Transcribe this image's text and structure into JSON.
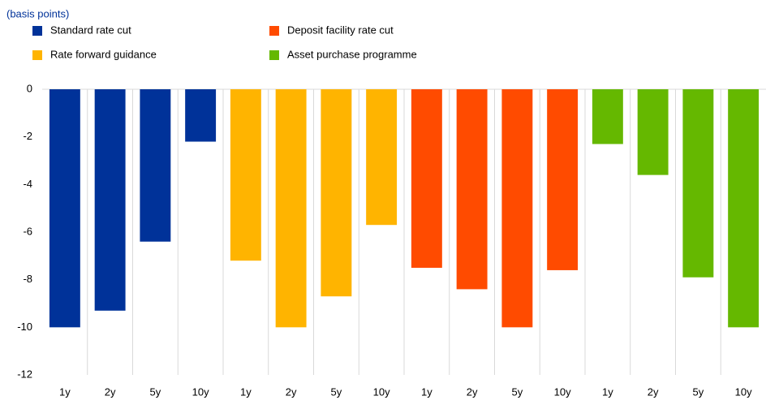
{
  "chart_data": {
    "type": "bar",
    "subtitle": "(basis points)",
    "categories": [
      "1y",
      "2y",
      "5y",
      "10y",
      "1y",
      "2y",
      "5y",
      "10y",
      "1y",
      "2y",
      "5y",
      "10y",
      "1y",
      "2y",
      "5y",
      "10y"
    ],
    "series": [
      {
        "name": "Standard rate cut",
        "color": "#003299",
        "values": [
          -10,
          -9.3,
          -6.4,
          -2.2,
          null,
          null,
          null,
          null,
          null,
          null,
          null,
          null,
          null,
          null,
          null,
          null
        ]
      },
      {
        "name": "Rate forward guidance",
        "color": "#ffb400",
        "values": [
          null,
          null,
          null,
          null,
          -7.2,
          -10,
          -8.7,
          -5.7,
          null,
          null,
          null,
          null,
          null,
          null,
          null,
          null
        ]
      },
      {
        "name": "Deposit facility rate cut",
        "color": "#ff4b00",
        "values": [
          null,
          null,
          null,
          null,
          null,
          null,
          null,
          null,
          -7.5,
          -8.4,
          -10,
          -7.6,
          null,
          null,
          null,
          null
        ]
      },
      {
        "name": "Asset purchase programme",
        "color": "#65b800",
        "values": [
          null,
          null,
          null,
          null,
          null,
          null,
          null,
          null,
          null,
          null,
          null,
          null,
          -2.3,
          -3.6,
          -7.9,
          -10
        ]
      }
    ],
    "ylim": [
      -12,
      0
    ],
    "yticks": [
      0,
      -2,
      -4,
      -6,
      -8,
      -10,
      -12
    ],
    "grid": true,
    "legend": "top"
  }
}
